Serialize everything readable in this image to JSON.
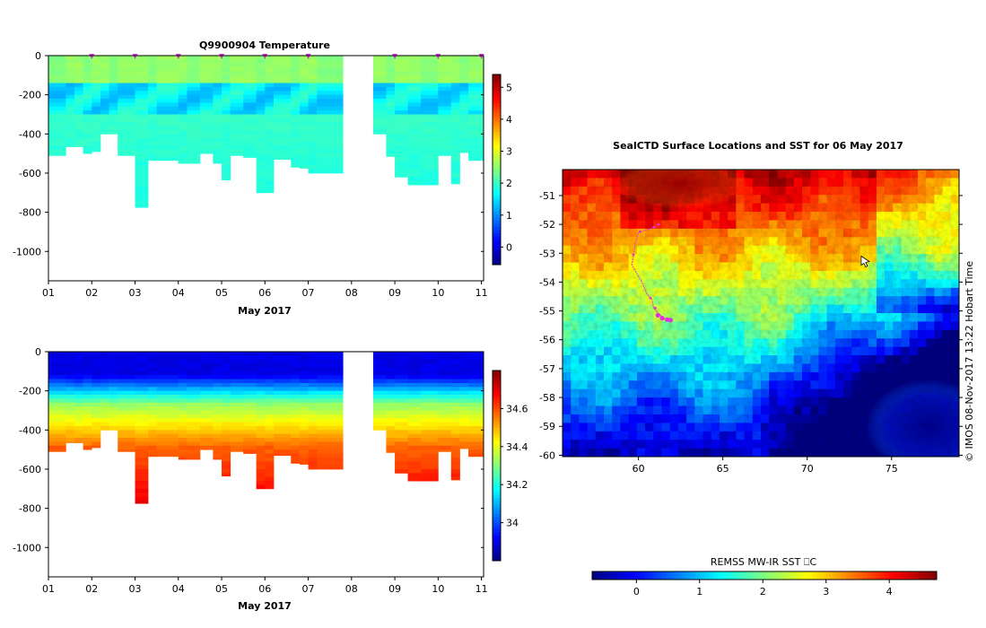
{
  "colors": {
    "jet": [
      "#00007f",
      "#0000ff",
      "#007fff",
      "#00ffff",
      "#7fff7f",
      "#ffff00",
      "#ff7f00",
      "#ff0000",
      "#7f0000"
    ],
    "marker": "#e030e0"
  },
  "chart_data": [
    {
      "type": "heatmap",
      "id": "temperature",
      "title": "Q9900904  Temperature",
      "xlabel": "May 2017",
      "xticks": [
        "01",
        "02",
        "03",
        "04",
        "05",
        "06",
        "07",
        "08",
        "09",
        "10",
        "11"
      ],
      "xlim": [
        1,
        11.05
      ],
      "ylim": [
        -1150,
        0
      ],
      "yticks": [
        "0",
        "-200",
        "-400",
        "-600",
        "-800",
        "-1000"
      ],
      "ytick_values": [
        0,
        -200,
        -400,
        -600,
        -800,
        -1000
      ],
      "colorbar_ticks": [
        "0",
        "1",
        "2",
        "3",
        "4",
        "5"
      ],
      "colorbar_tick_values": [
        0,
        1,
        2,
        3,
        4,
        5
      ],
      "colorbar_range": [
        -0.55,
        5.4
      ],
      "profile_days": [
        1.0,
        1.4,
        1.6,
        1.8,
        2.0,
        2.2,
        2.4,
        2.6,
        3.0,
        3.3,
        3.5,
        4.0,
        4.2,
        4.5,
        4.8,
        5.0,
        5.2,
        5.5,
        5.8,
        6.0,
        6.2,
        6.6,
        6.8,
        7.0,
        7.2,
        7.8,
        8.5,
        8.8,
        9.0,
        9.3,
        9.6,
        10.0,
        10.3,
        10.5,
        10.7,
        11.05
      ],
      "profile_depths": [
        510,
        465,
        465,
        500,
        490,
        400,
        400,
        510,
        775,
        535,
        535,
        550,
        550,
        500,
        550,
        635,
        510,
        520,
        700,
        700,
        530,
        570,
        575,
        600,
        600,
        0,
        400,
        515,
        620,
        660,
        660,
        510,
        655,
        495,
        535
      ],
      "gaps": [
        [
          7.85,
          8.45
        ]
      ],
      "surface_markers": [
        2.0,
        3.0,
        4.0,
        5.0,
        6.0,
        7.0,
        9.0,
        10.0,
        11.0
      ]
    },
    {
      "type": "heatmap",
      "id": "salinity",
      "title": "",
      "xlabel": "May 2017",
      "xticks": [
        "01",
        "02",
        "03",
        "04",
        "05",
        "06",
        "07",
        "08",
        "09",
        "10",
        "11"
      ],
      "xlim": [
        1,
        11.05
      ],
      "ylim": [
        -1150,
        0
      ],
      "yticks": [
        "0",
        "-200",
        "-400",
        "-600",
        "-800",
        "-1000"
      ],
      "ytick_values": [
        0,
        -200,
        -400,
        -600,
        -800,
        -1000
      ],
      "colorbar_ticks": [
        "34",
        "34.2",
        "34.4",
        "34.6"
      ],
      "colorbar_tick_values": [
        34.0,
        34.2,
        34.4,
        34.6
      ],
      "colorbar_range": [
        33.8,
        34.8
      ]
    },
    {
      "type": "heatmap",
      "id": "sst-map",
      "title": "SealCTD Surface Locations and SST for 06 May 2017",
      "xticks": [
        "60",
        "65",
        "70",
        "75"
      ],
      "xtick_values": [
        60,
        65,
        70,
        75
      ],
      "xlim": [
        55.5,
        79
      ],
      "yticks": [
        "-51",
        "-52",
        "-53",
        "-54",
        "-55",
        "-56",
        "-57",
        "-58",
        "-59",
        "-60"
      ],
      "ytick_values": [
        -51,
        -52,
        -53,
        -54,
        -55,
        -56,
        -57,
        -58,
        -59,
        -60
      ],
      "ylim": [
        -60.05,
        -50.1
      ],
      "colorbar_label": "REMSS MW-IR SST ⎕C",
      "colorbar_ticks": [
        "0",
        "1",
        "2",
        "3",
        "4"
      ],
      "colorbar_tick_values": [
        0,
        1,
        2,
        3,
        4
      ],
      "colorbar_range": [
        -0.7,
        4.75
      ],
      "credit": "©  IMOS 08-Nov-2017 13:22 Hobart Time",
      "seal_track": [
        [
          61.2,
          -52.0
        ],
        [
          61.0,
          -52.1
        ],
        [
          60.4,
          -52.2
        ],
        [
          60.0,
          -52.3
        ],
        [
          59.8,
          -52.7
        ],
        [
          59.7,
          -53.1
        ],
        [
          59.6,
          -53.4
        ],
        [
          59.9,
          -53.7
        ],
        [
          60.2,
          -54.0
        ],
        [
          60.5,
          -54.4
        ],
        [
          60.8,
          -54.6
        ],
        [
          60.9,
          -54.9
        ],
        [
          61.2,
          -55.1
        ],
        [
          61.6,
          -55.3
        ],
        [
          61.9,
          -55.3
        ]
      ],
      "seal_surfacings": [
        [
          61.2,
          -52.0
        ],
        [
          60.9,
          -52.1
        ],
        [
          60.1,
          -52.25
        ],
        [
          59.7,
          -53.05
        ],
        [
          60.7,
          -54.55
        ],
        [
          61.0,
          -54.9
        ],
        [
          61.15,
          -55.15
        ],
        [
          61.4,
          -55.25
        ],
        [
          61.7,
          -55.3
        ],
        [
          61.9,
          -55.32
        ]
      ],
      "tag_location": [
        73.2,
        -53.1
      ]
    }
  ]
}
